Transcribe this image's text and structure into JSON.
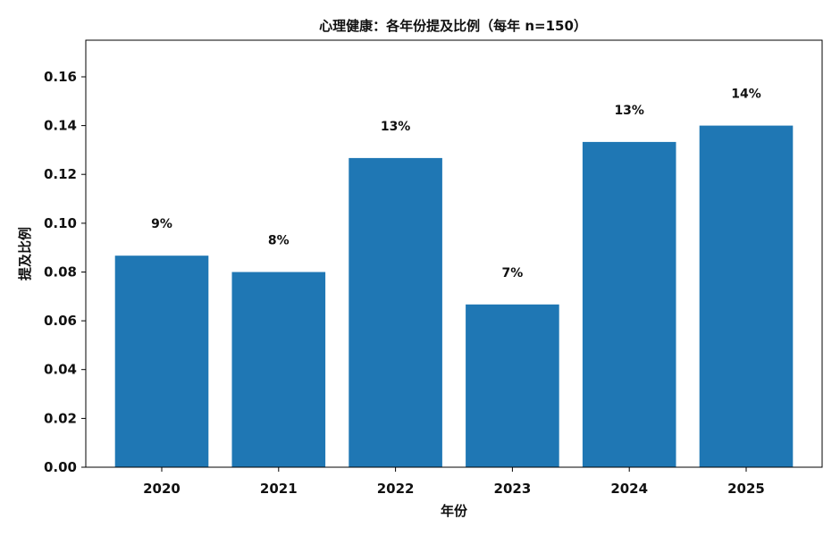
{
  "chart_data": {
    "type": "bar",
    "title": "心理健康：各年份提及比例（每年 n=150）",
    "xlabel": "年份",
    "ylabel": "提及比例",
    "categories": [
      "2020",
      "2021",
      "2022",
      "2023",
      "2024",
      "2025"
    ],
    "values": [
      0.0867,
      0.08,
      0.1267,
      0.0667,
      0.1333,
      0.14
    ],
    "data_labels": [
      "9%",
      "8%",
      "13%",
      "7%",
      "13%",
      "14%"
    ],
    "ylim": [
      0,
      0.175
    ],
    "yticks": [
      "0.00",
      "0.02",
      "0.04",
      "0.06",
      "0.08",
      "0.10",
      "0.12",
      "0.14",
      "0.16"
    ],
    "bar_color": "#1f77b4",
    "grid": false,
    "legend": "none"
  }
}
